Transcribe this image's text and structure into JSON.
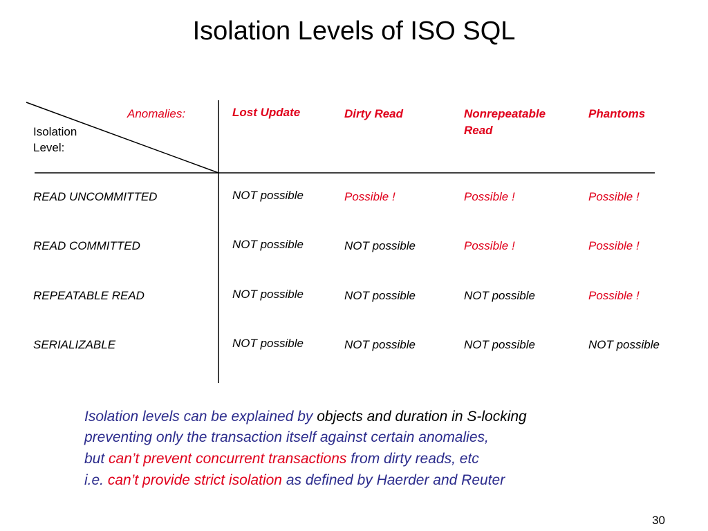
{
  "title": "Isolation Levels of ISO SQL",
  "table": {
    "corner": {
      "anomalies_label": "Anomalies:",
      "isolation_label_line1": "Isolation",
      "isolation_label_line2": "Level:"
    },
    "columns": [
      {
        "line1": "Lost Update",
        "line2": ""
      },
      {
        "line1": "Dirty Read",
        "line2": ""
      },
      {
        "line1": "Nonrepeatable",
        "line2": "Read"
      },
      {
        "line1": "Phantoms",
        "line2": ""
      }
    ],
    "rows": [
      {
        "level": "READ  UNCOMMITTED",
        "cells": [
          "NOT possible",
          "Possible !",
          "Possible !",
          "Possible !"
        ]
      },
      {
        "level": "READ  COMMITTED",
        "cells": [
          "NOT possible",
          "NOT possible",
          "Possible !",
          "Possible !"
        ]
      },
      {
        "level": "REPEATABLE READ",
        "cells": [
          "NOT possible",
          "NOT possible",
          "NOT possible",
          "Possible !"
        ]
      },
      {
        "level": "SERIALIZABLE",
        "cells": [
          "NOT possible",
          "NOT possible",
          "NOT possible",
          "NOT possible"
        ]
      }
    ]
  },
  "notes": {
    "line1": {
      "a": "Isolation levels can be explained by ",
      "b": "objects and duration in S-locking"
    },
    "line2": {
      "a": "preventing only the transaction itself against certain anomalies,"
    },
    "line3": {
      "a": "but ",
      "b": "can’t prevent concurrent transactions",
      "c": " from dirty reads, etc"
    },
    "line4": {
      "a": "i.e. ",
      "b": "can’t provide strict isolation",
      "c": " as defined by Haerder and Reuter"
    }
  },
  "slide_number": "30",
  "colors": {
    "accent_red": "#e0001b",
    "note_blue": "#2b2b8c",
    "text": "#000000"
  }
}
